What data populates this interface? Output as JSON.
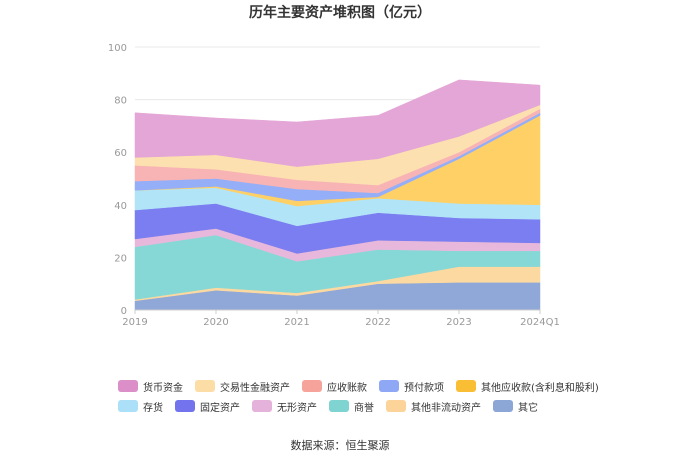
{
  "chart_data": {
    "type": "area",
    "stacked": true,
    "title": "历年主要资产堆积图（亿元）",
    "categories": [
      "2019",
      "2020",
      "2021",
      "2022",
      "2023",
      "2024Q1"
    ],
    "ylim": [
      0,
      100
    ],
    "yticks": [
      "0",
      "20",
      "40",
      "60",
      "80",
      "100"
    ],
    "grid": true,
    "legend_position": "bottom",
    "series": [
      {
        "name": "其它",
        "color": "#8FA8D8",
        "values": [
          3.5,
          7.5,
          5.5,
          10,
          10.5,
          10.5
        ]
      },
      {
        "name": "其他非流动资产",
        "color": "#FCD9A0",
        "values": [
          0.5,
          1,
          1,
          1,
          6,
          6
        ]
      },
      {
        "name": "商誉",
        "color": "#86D8D6",
        "values": [
          20,
          20,
          12,
          12,
          6,
          6
        ]
      },
      {
        "name": "无形资产",
        "color": "#E8B8DC",
        "values": [
          3,
          2.5,
          3,
          3.5,
          3.5,
          3
        ]
      },
      {
        "name": "固定资产",
        "color": "#7B7EF0",
        "values": [
          11,
          9.5,
          10.5,
          10.5,
          9,
          9
        ]
      },
      {
        "name": "存货",
        "color": "#B2E4F8",
        "values": [
          7.5,
          6,
          7.5,
          5.5,
          5.5,
          5.5
        ]
      },
      {
        "name": "其他应收款(含利息和股利)",
        "color": "#FFD066",
        "values": [
          0,
          0.5,
          2,
          0.5,
          17,
          34
        ]
      },
      {
        "name": "预付款项",
        "color": "#95AEF8",
        "values": [
          3.5,
          3,
          4.5,
          1.5,
          1,
          1
        ]
      },
      {
        "name": "应收账款",
        "color": "#F8B4B4",
        "values": [
          6,
          3.5,
          3.5,
          3,
          1.5,
          1.5
        ]
      },
      {
        "name": "交易性金融资产",
        "color": "#FDE0B0",
        "values": [
          3,
          5.5,
          5,
          10,
          6,
          1.5
        ]
      },
      {
        "name": "货币资金",
        "color": "#E4A6D6",
        "values": [
          17,
          14,
          17,
          16.5,
          21.5,
          7.5
        ]
      }
    ]
  },
  "legend": {
    "rows": [
      [
        {
          "label": "货币资金",
          "color": "#DB8EC7"
        },
        {
          "label": "交易性金融资产",
          "color": "#FDDDA6"
        },
        {
          "label": "应收账款",
          "color": "#F6A39B"
        },
        {
          "label": "预付款项",
          "color": "#8FA8F6"
        },
        {
          "label": "其他应收款(含利息和股利)",
          "color": "#F9BE33"
        }
      ],
      [
        {
          "label": "存货",
          "color": "#ACE0F8"
        },
        {
          "label": "固定资产",
          "color": "#7373EE"
        },
        {
          "label": "无形资产",
          "color": "#E4B2DB"
        },
        {
          "label": "商誉",
          "color": "#7FD4D2"
        },
        {
          "label": "其他非流动资产",
          "color": "#FCD398"
        },
        {
          "label": "其它",
          "color": "#8CA6D6"
        }
      ]
    ]
  },
  "footer": {
    "source": "数据来源：恒生聚源"
  }
}
